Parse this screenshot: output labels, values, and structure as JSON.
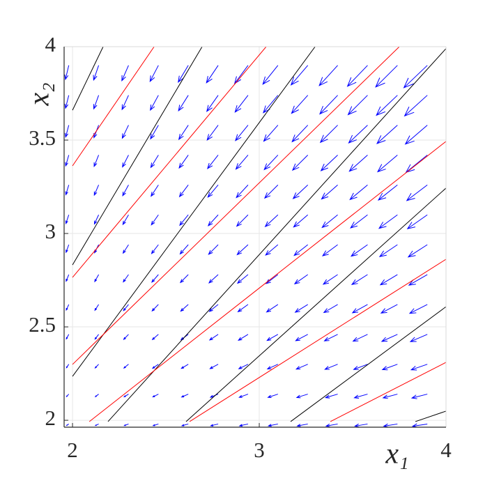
{
  "chart_data": {
    "type": "quiver",
    "xlabel": "x₁",
    "ylabel": "x₂",
    "xlim": [
      1.955,
      4
    ],
    "ylim": [
      1.963,
      4
    ],
    "xticks": [
      2,
      3,
      4
    ],
    "yticks": [
      2,
      2.5,
      3,
      3.5,
      4
    ],
    "grid": true,
    "quiver": {
      "color": "#0000ff",
      "x": [
        1.98,
        2.14,
        2.3,
        2.46,
        2.62,
        2.78,
        2.94,
        3.1,
        3.26,
        3.42,
        3.58,
        3.74,
        3.9
      ],
      "y": [
        1.98,
        2.14,
        2.3,
        2.46,
        2.62,
        2.78,
        2.94,
        3.1,
        3.26,
        3.42,
        3.58,
        3.74,
        3.9
      ],
      "u": [
        [
          -3,
          -4.5,
          -6,
          -7.5,
          -9,
          -10.5,
          -12,
          -13.5,
          -15,
          -16.5,
          -18,
          -19.5,
          -21
        ],
        [
          -3.2,
          -4.7,
          -6.3,
          -7.9,
          -9.5,
          -11,
          -12.6,
          -14.2,
          -15.8,
          -17.3,
          -18.9,
          -20.5,
          -22.1
        ],
        [
          -3.3,
          -5,
          -6.6,
          -8.3,
          -9.9,
          -11.6,
          -13.2,
          -14.9,
          -16.5,
          -18.2,
          -19.8,
          -21.5,
          -23.1
        ],
        [
          -3.5,
          -5.2,
          -6.9,
          -8.6,
          -10.4,
          -12.1,
          -13.8,
          -15.5,
          -17.3,
          -19,
          -20.7,
          -22.4,
          -24.2
        ],
        [
          -3.6,
          -5.4,
          -7.2,
          -9,
          -10.8,
          -12.6,
          -14.4,
          -16.2,
          -18,
          -19.8,
          -21.6,
          -23.4,
          -25.2
        ],
        [
          -3.8,
          -5.6,
          -7.5,
          -9.4,
          -11.3,
          -13.1,
          -15,
          -16.9,
          -18.8,
          -20.6,
          -22.5,
          -24.4,
          -26.3
        ],
        [
          -3.9,
          -5.9,
          -7.8,
          -9.8,
          -11.7,
          -13.7,
          -15.6,
          -17.6,
          -19.5,
          -21.5,
          -23.4,
          -25.4,
          -27.3
        ],
        [
          -4.1,
          -6.1,
          -8.1,
          -10.1,
          -12.2,
          -14.2,
          -16.2,
          -18.2,
          -20.3,
          -22.3,
          -24.3,
          -26.3,
          -28.4
        ],
        [
          -4.2,
          -6.3,
          -8.4,
          -10.5,
          -12.6,
          -14.7,
          -16.8,
          -18.9,
          -21,
          -23.1,
          -25.2,
          -27.3,
          -29.4
        ],
        [
          -4.4,
          -6.5,
          -8.7,
          -10.9,
          -13.1,
          -15.2,
          -17.4,
          -19.6,
          -21.8,
          -23.9,
          -26.1,
          -28.3,
          -30.5
        ],
        [
          -4.5,
          -6.8,
          -9,
          -11.3,
          -13.5,
          -15.8,
          -18,
          -20.3,
          -22.5,
          -24.8,
          -27,
          -29.3,
          -31.5
        ],
        [
          -4.7,
          -7,
          -9.3,
          -11.6,
          -14,
          -16.3,
          -18.6,
          -20.9,
          -23.3,
          -25.6,
          -27.9,
          -30.2,
          -32.6
        ],
        [
          -4.8,
          -7.2,
          -9.6,
          -12,
          -14.4,
          -16.8,
          -19.2,
          -21.6,
          -24,
          -26.4,
          -28.8,
          -31.2,
          -33.6
        ]
      ],
      "v": [
        [
          -2,
          -2.1,
          -2.2,
          -2.3,
          -2.4,
          -2.5,
          -2.6,
          -2.7,
          -2.8,
          -2.9,
          -3,
          -3.1,
          -3.2
        ],
        [
          -3.5,
          -3.7,
          -3.9,
          -4,
          -4.2,
          -4.4,
          -4.6,
          -4.7,
          -4.9,
          -5.1,
          -5.3,
          -5.4,
          -5.6
        ],
        [
          -5,
          -5.3,
          -5.5,
          -5.8,
          -6,
          -6.3,
          -6.5,
          -6.8,
          -7,
          -7.3,
          -7.5,
          -7.8,
          -8
        ],
        [
          -6.5,
          -6.8,
          -7.2,
          -7.5,
          -7.8,
          -8.1,
          -8.5,
          -8.8,
          -9.1,
          -9.4,
          -9.8,
          -10.1,
          -10.4
        ],
        [
          -8,
          -8.4,
          -8.8,
          -9.2,
          -9.6,
          -10,
          -10.4,
          -10.8,
          -11.2,
          -11.6,
          -12,
          -12.4,
          -12.8
        ],
        [
          -9.5,
          -10,
          -10.5,
          -10.9,
          -11.4,
          -11.9,
          -12.4,
          -12.8,
          -13.3,
          -13.8,
          -14.3,
          -14.7,
          -15.2
        ],
        [
          -11,
          -11.6,
          -12.1,
          -12.7,
          -13.2,
          -13.8,
          -14.3,
          -14.9,
          -15.4,
          -16,
          -16.5,
          -17.1,
          -17.6
        ],
        [
          -12.5,
          -13.1,
          -13.8,
          -14.4,
          -15,
          -15.6,
          -16.3,
          -16.9,
          -17.5,
          -18.1,
          -18.8,
          -19.4,
          -20
        ],
        [
          -14,
          -14.7,
          -15.4,
          -16.1,
          -16.8,
          -17.5,
          -18.2,
          -18.9,
          -19.6,
          -20.3,
          -21,
          -21.7,
          -22.4
        ],
        [
          -15.5,
          -16.3,
          -17.1,
          -17.8,
          -18.6,
          -19.4,
          -20.2,
          -20.9,
          -21.7,
          -22.5,
          -23.3,
          -24,
          -24.8
        ],
        [
          -17,
          -17.9,
          -18.7,
          -19.6,
          -20.4,
          -21.3,
          -22.1,
          -23,
          -23.8,
          -24.7,
          -25.5,
          -26.4,
          -27.2
        ],
        [
          -18.5,
          -19.4,
          -20.4,
          -21.3,
          -22.2,
          -23.1,
          -24.1,
          -25,
          -25.9,
          -26.8,
          -27.8,
          -28.7,
          -29.6
        ],
        [
          -20,
          -21,
          -22,
          -23,
          -24,
          -25,
          -26,
          -27,
          -28,
          -29,
          -30,
          -31,
          -32
        ]
      ]
    },
    "series": [
      {
        "color": "#000000",
        "x": [
          2,
          2.164
        ],
        "y": [
          3.66,
          4
        ]
      },
      {
        "color": "#000000",
        "x": [
          2,
          2.694
        ],
        "y": [
          2.832,
          4
        ]
      },
      {
        "color": "#000000",
        "x": [
          2,
          3.299
        ],
        "y": [
          2.235,
          4
        ]
      },
      {
        "color": "#000000",
        "x": [
          2.19,
          4
        ],
        "y": [
          1.993,
          3.99
        ]
      },
      {
        "color": "#000000",
        "x": [
          2.608,
          4
        ],
        "y": [
          1.993,
          3.243
        ]
      },
      {
        "color": "#000000",
        "x": [
          3.168,
          4
        ],
        "y": [
          1.993,
          2.608
        ]
      },
      {
        "color": "#000000",
        "x": [
          3.836,
          4
        ],
        "y": [
          1.993,
          2.049
        ]
      },
      {
        "color": "#ff0000",
        "x": [
          2,
          2.437
        ],
        "y": [
          3.362,
          4
        ]
      },
      {
        "color": "#ff0000",
        "x": [
          2,
          3.037
        ],
        "y": [
          2.765,
          4
        ]
      },
      {
        "color": "#ff0000",
        "x": [
          2,
          3.75
        ],
        "y": [
          2.299,
          4
        ]
      },
      {
        "color": "#ff0000",
        "x": [
          2.09,
          4
        ],
        "y": [
          1.993,
          3.493
        ]
      },
      {
        "color": "#ff0000",
        "x": [
          2.627,
          4
        ],
        "y": [
          1.993,
          2.862
        ]
      },
      {
        "color": "#ff0000",
        "x": [
          3.381,
          4
        ],
        "y": [
          1.993,
          2.31
        ]
      }
    ]
  }
}
